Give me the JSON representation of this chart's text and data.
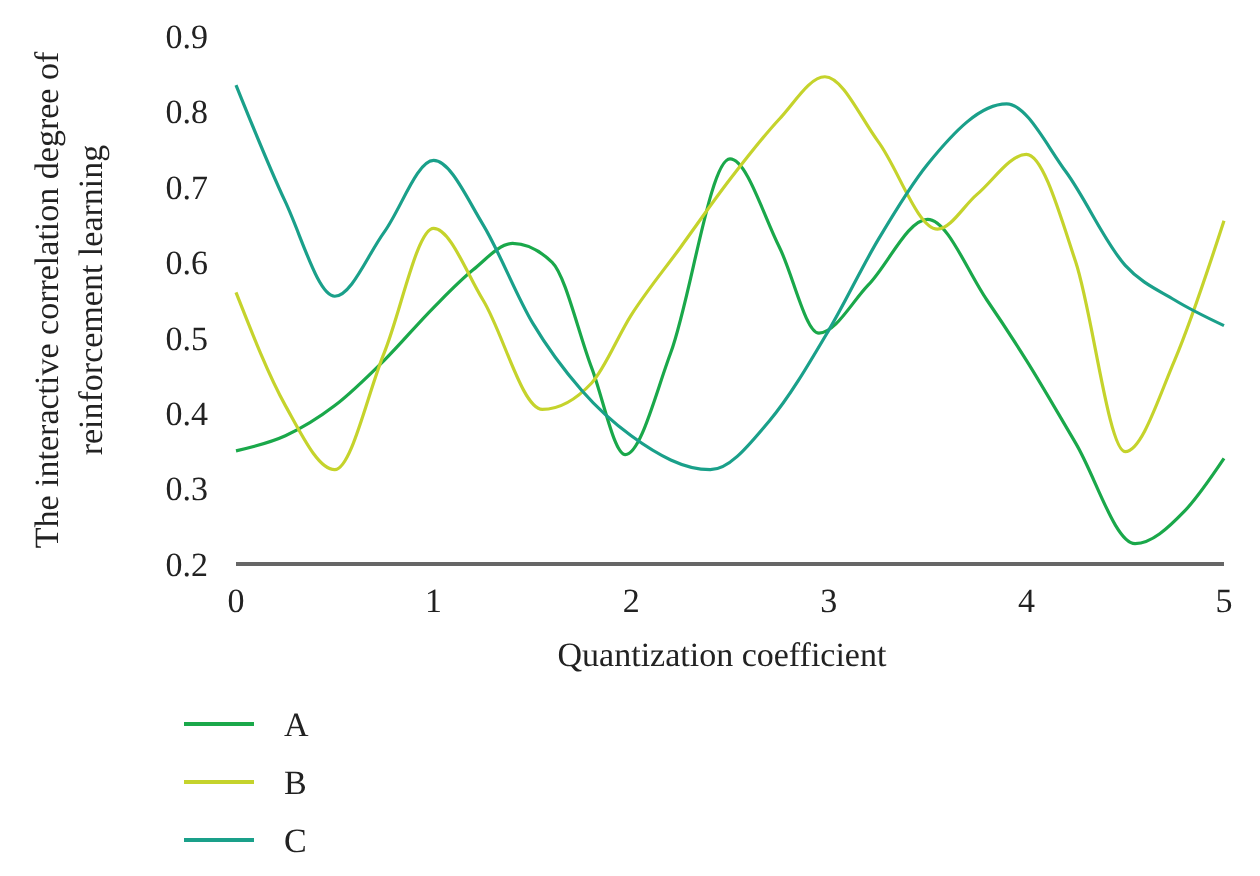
{
  "chart_data": {
    "type": "line",
    "xlabel": "Quantization coefficient",
    "ylabel": "The interactive correlation degree of reinforcement learning",
    "xlim": [
      0,
      5
    ],
    "xticks": [
      0,
      1,
      2,
      3,
      4,
      5
    ],
    "ylim": [
      0.2,
      0.9
    ],
    "yticks": [
      0.2,
      0.3,
      0.4,
      0.5,
      0.6,
      0.7,
      0.8,
      0.9
    ],
    "grid": false,
    "legend": "bottom left",
    "line_style": "solid",
    "marker": "none",
    "series": [
      {
        "name": "A",
        "color": "#1aa84a",
        "x": [
          0,
          0.25,
          0.5,
          0.75,
          1,
          1.2,
          1.4,
          1.6,
          1.8,
          1.97,
          2.2,
          2.5,
          2.75,
          2.95,
          3.2,
          3.5,
          3.8,
          4,
          4.25,
          4.55,
          4.8,
          5
        ],
        "values": [
          0.35,
          0.37,
          0.41,
          0.47,
          0.54,
          0.59,
          0.625,
          0.6,
          0.46,
          0.345,
          0.48,
          0.737,
          0.62,
          0.506,
          0.57,
          0.657,
          0.55,
          0.47,
          0.36,
          0.227,
          0.27,
          0.34
        ]
      },
      {
        "name": "B",
        "color": "#c5d32c",
        "x": [
          0,
          0.25,
          0.5,
          0.75,
          1,
          1.25,
          1.55,
          1.8,
          2,
          2.25,
          2.5,
          2.75,
          2.98,
          3.25,
          3.55,
          3.75,
          4,
          4.25,
          4.5,
          4.75,
          5
        ],
        "values": [
          0.56,
          0.41,
          0.325,
          0.48,
          0.645,
          0.55,
          0.405,
          0.44,
          0.53,
          0.62,
          0.71,
          0.79,
          0.846,
          0.76,
          0.644,
          0.69,
          0.743,
          0.6,
          0.349,
          0.47,
          0.655
        ]
      },
      {
        "name": "C",
        "color": "#1aa08a",
        "x": [
          0,
          0.25,
          0.5,
          0.75,
          1,
          1.25,
          1.5,
          1.75,
          2,
          2.4,
          2.7,
          3,
          3.25,
          3.5,
          3.9,
          4.2,
          4.5,
          4.75,
          5
        ],
        "values": [
          0.835,
          0.68,
          0.555,
          0.64,
          0.735,
          0.65,
          0.52,
          0.43,
          0.37,
          0.325,
          0.39,
          0.51,
          0.63,
          0.73,
          0.81,
          0.72,
          0.596,
          0.55,
          0.516
        ]
      }
    ]
  }
}
